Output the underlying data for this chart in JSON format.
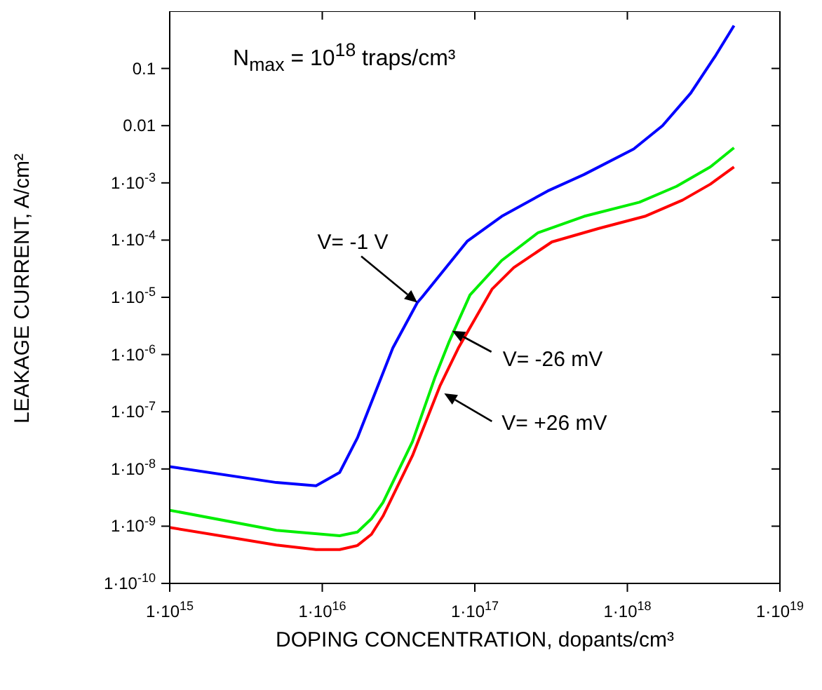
{
  "chart_data": {
    "type": "line",
    "log": "xy",
    "xlabel": "DOPING CONCENTRATION, dopants/cm³",
    "ylabel": "LEAKAGE CURRENT, A/cm²",
    "xlim": [
      1000000000000000.0,
      1e+19
    ],
    "ylim": [
      1e-10,
      1
    ],
    "xticks": [
      {
        "value": 1000000000000000.0,
        "label": "1·10$^{15}$"
      },
      {
        "value": 1e+16,
        "label": "1·10$^{16}$"
      },
      {
        "value": 1e+17,
        "label": "1·10$^{17}$"
      },
      {
        "value": 1e+18,
        "label": "1·10$^{18}$"
      },
      {
        "value": 1e+19,
        "label": "1·10$^{19}$"
      }
    ],
    "yticks": [
      {
        "value": 1e-10,
        "label": "1·10$^{-10}$"
      },
      {
        "value": 1e-09,
        "label": "1·10$^{-9}$"
      },
      {
        "value": 1e-08,
        "label": "1·10$^{-8}$"
      },
      {
        "value": 1e-07,
        "label": "1·10$^{-7}$"
      },
      {
        "value": 1e-06,
        "label": "1·10$^{-6}$"
      },
      {
        "value": 1e-05,
        "label": "1·10$^{-5}$"
      },
      {
        "value": 0.0001,
        "label": "1·10$^{-4}$"
      },
      {
        "value": 0.001,
        "label": "1·10$^{-3}$"
      },
      0.01,
      0.1
    ],
    "marker": "none",
    "line_style": "solid",
    "series": [
      {
        "color": "#0000ff",
        "x": [
          1000000000000000.0,
          5000000000000000.0,
          9100000000000000.0,
          1.3e+16,
          1.7e+16,
          2.9e+16,
          4.2e+16,
          4.5e+16,
          8.9e+16,
          1.5e+17,
          3e+17,
          5.2e+17,
          1.1e+18,
          1.7e+18,
          2.6e+18,
          3.8e+18,
          5e+18
        ],
        "values": [
          1.1e-08,
          5.8e-09,
          5.1e-09,
          8.7e-09,
          3.5e-08,
          1.3e-06,
          8.1e-06,
          1e-05,
          9.5e-05,
          0.00026,
          0.00072,
          0.0014,
          0.0039,
          0.01,
          0.037,
          0.17,
          0.56
        ]
      },
      {
        "color": "#00ee00",
        "x": [
          1000000000000000.0,
          5000000000000000.0,
          1.3e+16,
          1.7e+16,
          2.1e+16,
          2.5e+16,
          3.9e+16,
          5.5e+16,
          6.8e+16,
          9.3e+16,
          1.5e+17,
          2.6e+17,
          5.2e+17,
          1.2e+18,
          2.1e+18,
          3.5e+18,
          5e+18
        ],
        "values": [
          1.9e-09,
          8.5e-10,
          6.8e-10,
          7.9e-10,
          1.35e-09,
          2.6e-09,
          3e-08,
          4.1e-07,
          1.7e-06,
          1.1e-05,
          4.4e-05,
          0.000135,
          0.00026,
          0.00046,
          0.00087,
          0.0019,
          0.0041
        ]
      },
      {
        "color": "#ff0000",
        "x": [
          1000000000000000.0,
          5000000000000000.0,
          9100000000000000.0,
          1.3e+16,
          1.7e+16,
          2.1e+16,
          2.5e+16,
          3.9e+16,
          5.9e+16,
          7.8e+16,
          1.3e+17,
          1.8e+17,
          3.2e+17,
          6.5e+17,
          1.3e+18,
          2.3e+18,
          3.5e+18,
          5e+18
        ],
        "values": [
          9.5e-10,
          4.7e-10,
          3.9e-10,
          3.9e-10,
          4.6e-10,
          7.2e-10,
          1.5e-09,
          1.7e-08,
          2.8e-07,
          1.3e-06,
          1.4e-05,
          3.3e-05,
          9.3e-05,
          0.00016,
          0.00026,
          0.0005,
          0.00095,
          0.0019
        ]
      }
    ],
    "annotations": [
      "N$_{max}$ = 10$^{18}$ traps/cm³",
      {
        "text": "V= -1 V",
        "x": 4.2e+16,
        "y": 8.1e-06
      },
      {
        "text": "V= -26 mV",
        "x": 7.1e+16,
        "y": 2.6e-06
      },
      {
        "text": "V= +26 mV",
        "x": 6.3e+16,
        "y": 2.1e-07
      }
    ]
  }
}
